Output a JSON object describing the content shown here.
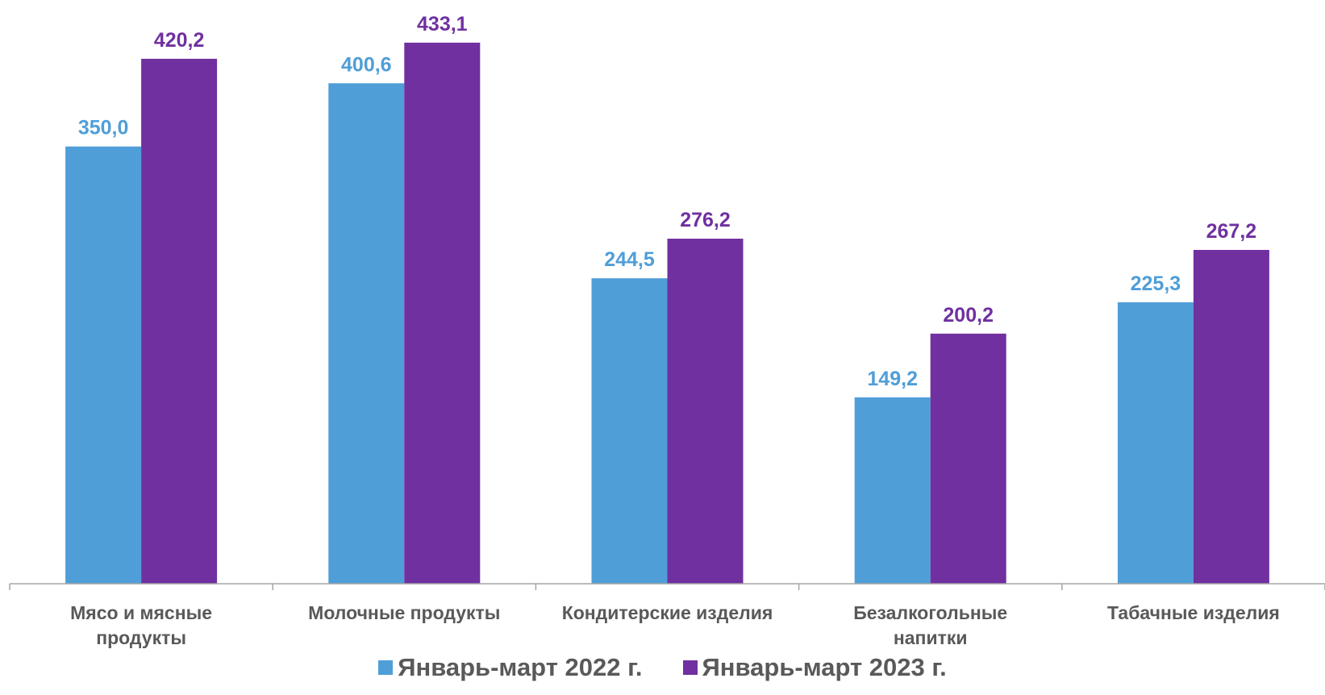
{
  "chart_data": {
    "type": "bar",
    "categories": [
      [
        "Мясо и мясные",
        "продукты"
      ],
      [
        "Молочные продукты"
      ],
      [
        "Кондитерские изделия"
      ],
      [
        "Безалкогольные",
        "напитки"
      ],
      [
        "Табачные изделия"
      ]
    ],
    "series": [
      {
        "name": "Январь-март 2022 г.",
        "color": "#4F9ED8",
        "values": [
          350.0,
          400.6,
          244.5,
          149.2,
          225.3
        ],
        "labels": [
          "350,0",
          "400,6",
          "244,5",
          "149,2",
          "225,3"
        ]
      },
      {
        "name": "Январь-март 2023 г.",
        "color": "#7030A0",
        "values": [
          420.2,
          433.1,
          276.2,
          200.2,
          267.2
        ],
        "labels": [
          "420,2",
          "433,1",
          "276,2",
          "200,2",
          "267,2"
        ]
      }
    ],
    "ylim": [
      0,
      460
    ],
    "grid": false,
    "legend_position": "bottom",
    "title": "",
    "xlabel": "",
    "ylabel": ""
  }
}
